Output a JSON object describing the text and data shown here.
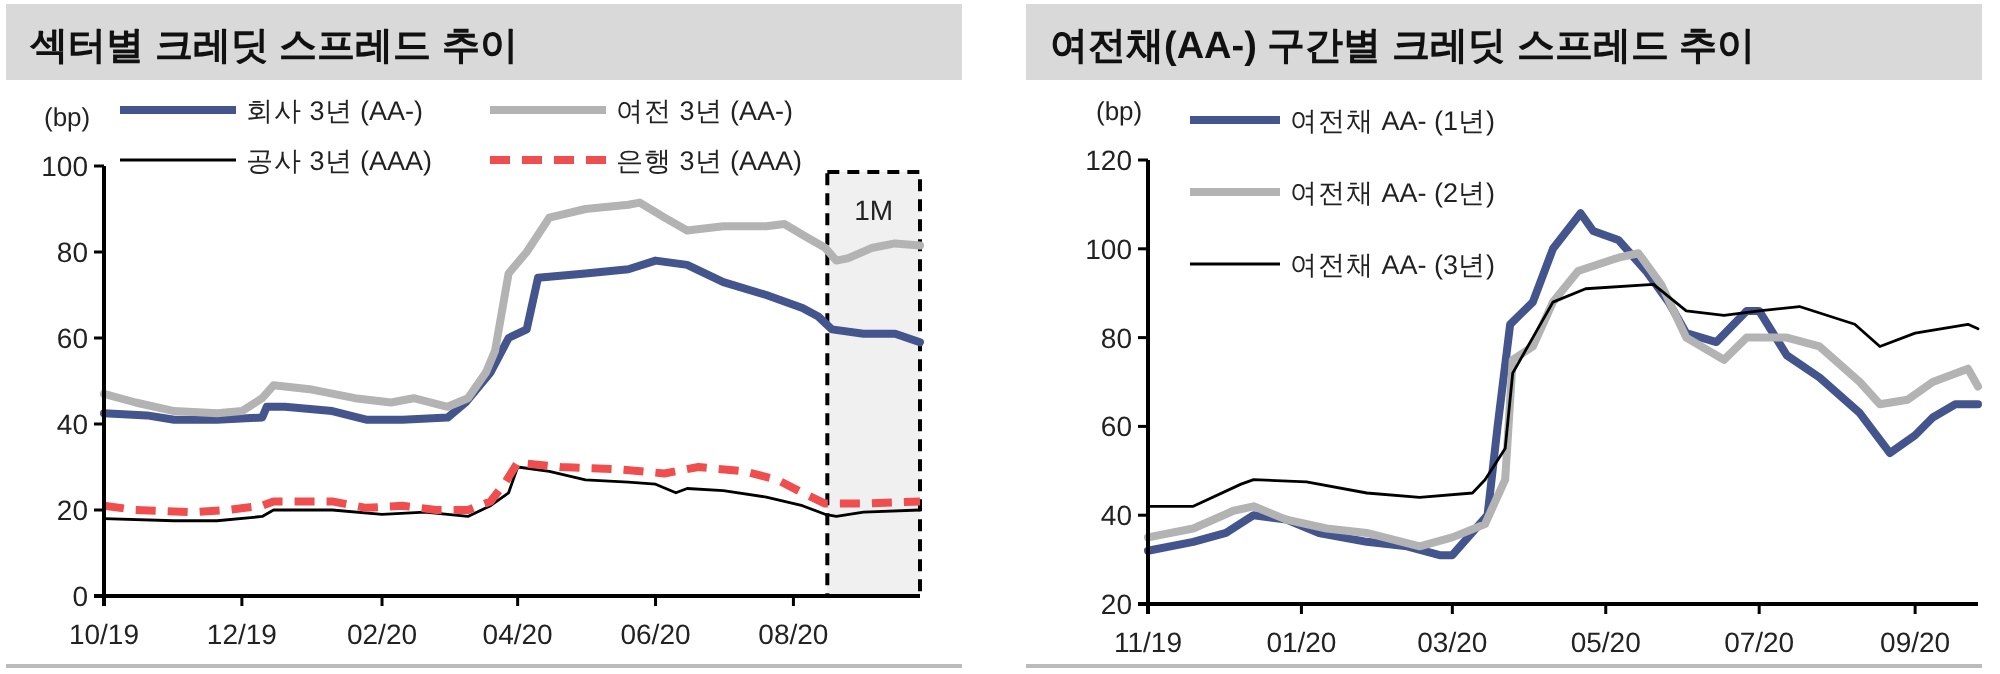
{
  "chart_data": [
    {
      "type": "line",
      "title": "섹터별 크레딧 스프레드 추이",
      "ylabel": "(bp)",
      "legend": "top",
      "grid": false,
      "xlim": [
        "2019-10-01",
        "2020-09-26"
      ],
      "ylim": [
        0,
        100
      ],
      "yticks": [
        0,
        20,
        40,
        60,
        80,
        100
      ],
      "xticks": [
        {
          "value": "2019-10-01",
          "label": "10/19"
        },
        {
          "value": "2019-12-01",
          "label": "12/19"
        },
        {
          "value": "2020-02-01",
          "label": "02/20"
        },
        {
          "value": "2020-04-01",
          "label": "04/20"
        },
        {
          "value": "2020-06-01",
          "label": "06/20"
        },
        {
          "value": "2020-08-01",
          "label": "08/20"
        }
      ],
      "bands": [
        {
          "axis": "x",
          "from": "2020-08-16",
          "to": "2020-09-26",
          "label": "1M",
          "color": "#000000"
        }
      ],
      "series": [
        {
          "name": "회사 3년 (AA-)",
          "color": "#44548c",
          "line_style": "solid",
          "x": [
            "2019-10-01",
            "2019-10-20",
            "2019-11-01",
            "2019-11-20",
            "2019-12-10",
            "2019-12-12",
            "2019-12-20",
            "2020-01-10",
            "2020-01-25",
            "2020-02-10",
            "2020-03-01",
            "2020-03-09",
            "2020-03-20",
            "2020-03-28",
            "2020-04-05",
            "2020-04-10",
            "2020-05-01",
            "2020-05-20",
            "2020-06-01",
            "2020-06-15",
            "2020-07-01",
            "2020-07-20",
            "2020-08-05",
            "2020-08-12",
            "2020-08-18",
            "2020-09-01",
            "2020-09-15",
            "2020-09-26"
          ],
          "values": [
            42.5,
            42,
            41,
            41,
            41.5,
            44,
            44,
            43,
            41,
            41,
            41.5,
            45,
            52,
            60,
            62,
            74,
            75,
            76,
            78,
            77,
            73,
            70,
            67,
            65,
            62,
            61,
            61,
            59
          ]
        },
        {
          "name": "여전 3년 (AA-)",
          "color": "#b3b3b3",
          "line_style": "solid",
          "x": [
            "2019-10-01",
            "2019-10-15",
            "2019-11-01",
            "2019-11-20",
            "2019-12-01",
            "2019-12-10",
            "2019-12-15",
            "2020-01-01",
            "2020-01-20",
            "2020-02-05",
            "2020-02-15",
            "2020-03-01",
            "2020-03-10",
            "2020-03-18",
            "2020-03-22",
            "2020-03-28",
            "2020-04-05",
            "2020-04-15",
            "2020-05-01",
            "2020-05-20",
            "2020-05-25",
            "2020-06-05",
            "2020-06-15",
            "2020-07-01",
            "2020-07-20",
            "2020-07-28",
            "2020-08-05",
            "2020-08-15",
            "2020-08-20",
            "2020-08-25",
            "2020-09-05",
            "2020-09-15",
            "2020-09-26"
          ],
          "values": [
            47,
            45,
            43,
            42.5,
            43,
            46,
            49,
            48,
            46,
            45,
            46,
            44,
            46,
            52,
            57,
            75,
            80,
            88,
            90,
            91,
            91.5,
            88,
            85,
            86,
            86,
            86.5,
            84,
            81,
            78,
            78.5,
            81,
            82,
            81.5
          ]
        },
        {
          "name": "공사 3년 (AAA)",
          "color": "#000000",
          "line_style": "solid",
          "x": [
            "2019-10-01",
            "2019-11-01",
            "2019-11-20",
            "2019-12-10",
            "2019-12-15",
            "2020-01-10",
            "2020-02-01",
            "2020-02-20",
            "2020-03-10",
            "2020-03-20",
            "2020-03-28",
            "2020-04-01",
            "2020-04-15",
            "2020-05-01",
            "2020-05-20",
            "2020-06-01",
            "2020-06-10",
            "2020-06-15",
            "2020-07-01",
            "2020-07-20",
            "2020-08-05",
            "2020-08-15",
            "2020-08-20",
            "2020-09-01",
            "2020-09-26"
          ],
          "values": [
            18,
            17.5,
            17.5,
            18.5,
            20,
            20,
            19,
            19.5,
            18.5,
            21,
            24,
            30,
            29,
            27,
            26.5,
            26,
            24,
            25,
            24.5,
            23,
            21,
            19,
            18.5,
            19.5,
            20
          ]
        },
        {
          "name": "은행 3년 (AAA)",
          "color": "#f04e4e",
          "line_style": "dashed",
          "x": [
            "2019-10-01",
            "2019-10-15",
            "2019-11-10",
            "2019-11-25",
            "2019-12-10",
            "2019-12-15",
            "2020-01-10",
            "2020-01-25",
            "2020-02-10",
            "2020-02-25",
            "2020-03-10",
            "2020-03-20",
            "2020-03-26",
            "2020-04-01",
            "2020-04-20",
            "2020-05-15",
            "2020-06-05",
            "2020-06-20",
            "2020-07-10",
            "2020-07-25",
            "2020-08-05",
            "2020-08-15",
            "2020-09-01",
            "2020-09-26"
          ],
          "values": [
            21,
            20,
            19.5,
            20,
            21,
            22,
            22,
            20.5,
            21,
            20,
            20,
            22,
            26,
            31,
            30,
            29.5,
            28.5,
            30,
            29,
            27,
            24,
            21.5,
            21.5,
            22
          ]
        }
      ]
    },
    {
      "type": "line",
      "title": "여전채(AA-) 구간별 크레딧 스프레드 추이",
      "ylabel": "(bp)",
      "legend": "top left",
      "grid": false,
      "xlim": [
        "2019-11-01",
        "2020-09-26"
      ],
      "ylim": [
        20,
        120
      ],
      "yticks": [
        20,
        40,
        60,
        80,
        100,
        120
      ],
      "xticks": [
        {
          "value": "2019-11-01",
          "label": "11/19"
        },
        {
          "value": "2020-01-01",
          "label": "01/20"
        },
        {
          "value": "2020-03-01",
          "label": "03/20"
        },
        {
          "value": "2020-05-01",
          "label": "05/20"
        },
        {
          "value": "2020-07-01",
          "label": "07/20"
        },
        {
          "value": "2020-09-01",
          "label": "09/20"
        }
      ],
      "series": [
        {
          "name": "여전채 AA- (1년)",
          "color": "#44548c",
          "line_style": "solid",
          "x": [
            "2019-11-01",
            "2019-11-19",
            "2019-12-02",
            "2019-12-13",
            "2019-12-26",
            "2020-01-08",
            "2020-01-27",
            "2020-02-12",
            "2020-02-25",
            "2020-03-01",
            "2020-03-15",
            "2020-03-19",
            "2020-03-24",
            "2020-04-02",
            "2020-04-10",
            "2020-04-21",
            "2020-04-26",
            "2020-05-06",
            "2020-05-17",
            "2020-05-26",
            "2020-06-02",
            "2020-06-14",
            "2020-06-26",
            "2020-07-01",
            "2020-07-12",
            "2020-07-25",
            "2020-08-10",
            "2020-08-22",
            "2020-09-01",
            "2020-09-08",
            "2020-09-17",
            "2020-09-26"
          ],
          "values": [
            32,
            34,
            36,
            40,
            39,
            36,
            34,
            33,
            31,
            31,
            40,
            60,
            83,
            88,
            100,
            108,
            104,
            102,
            95,
            88,
            81,
            79,
            86,
            86,
            76,
            71,
            63,
            54,
            58,
            62,
            65,
            65
          ]
        },
        {
          "name": "여전채 AA- (2년)",
          "color": "#b3b3b3",
          "line_style": "solid",
          "x": [
            "2019-11-01",
            "2019-11-19",
            "2019-12-05",
            "2019-12-13",
            "2019-12-26",
            "2020-01-11",
            "2020-01-27",
            "2020-02-17",
            "2020-03-01",
            "2020-03-14",
            "2020-03-22",
            "2020-03-25",
            "2020-04-02",
            "2020-04-10",
            "2020-04-20",
            "2020-05-06",
            "2020-05-14",
            "2020-05-23",
            "2020-06-02",
            "2020-06-17",
            "2020-06-26",
            "2020-07-12",
            "2020-07-25",
            "2020-08-10",
            "2020-08-18",
            "2020-08-29",
            "2020-09-08",
            "2020-09-22",
            "2020-09-26"
          ],
          "values": [
            35,
            37,
            41,
            42,
            39,
            37,
            36,
            33,
            35,
            38,
            48,
            75,
            78,
            88,
            95,
            98,
            99,
            92,
            80,
            75,
            80,
            80,
            78,
            70,
            65,
            66,
            70,
            73,
            69
          ]
        },
        {
          "name": "여전채 AA- (3년)",
          "color": "#000000",
          "line_style": "solid",
          "x": [
            "2019-11-01",
            "2019-11-19",
            "2019-12-08",
            "2019-12-13",
            "2020-01-03",
            "2020-01-27",
            "2020-02-17",
            "2020-03-09",
            "2020-03-14",
            "2020-03-22",
            "2020-03-25",
            "2020-04-02",
            "2020-04-10",
            "2020-04-23",
            "2020-05-20",
            "2020-06-02",
            "2020-06-17",
            "2020-07-01",
            "2020-07-17",
            "2020-08-08",
            "2020-08-18",
            "2020-09-01",
            "2020-09-22",
            "2020-09-26"
          ],
          "values": [
            42,
            42,
            47,
            48,
            47.5,
            45,
            44,
            45,
            48,
            55,
            72,
            80,
            88,
            91,
            92,
            86,
            85,
            86,
            87,
            83,
            78,
            81,
            83,
            82
          ]
        }
      ]
    }
  ]
}
